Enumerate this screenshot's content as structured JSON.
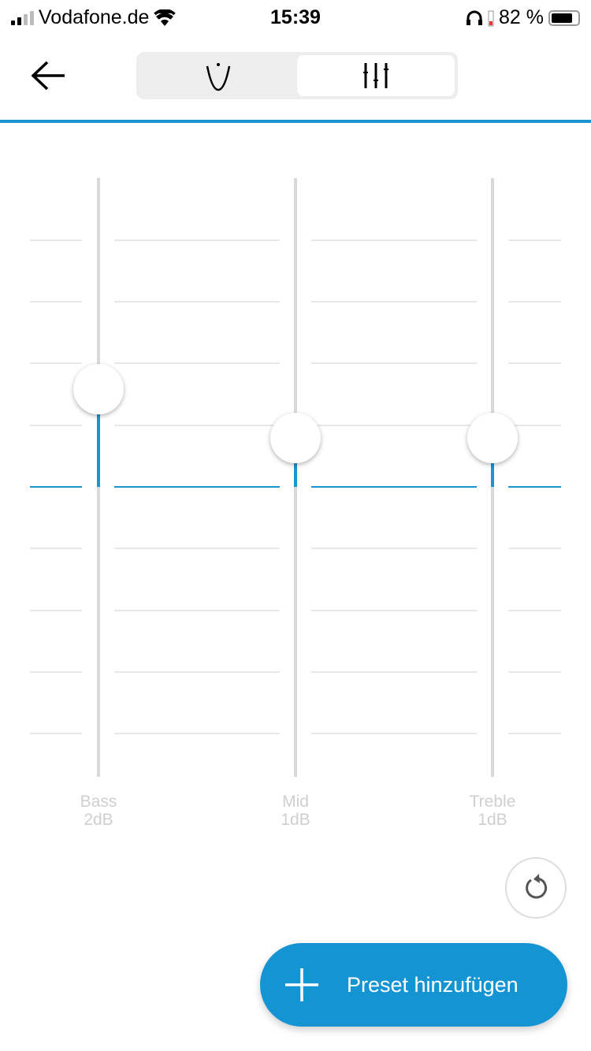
{
  "status_bar": {
    "carrier": "Vodafone.de",
    "time": "15:39",
    "battery": "82 %",
    "battery_level": 82
  },
  "header": {
    "back_icon": "arrow-left-icon",
    "segments": [
      {
        "icon": "curve-icon",
        "selected": false
      },
      {
        "icon": "sliders-icon",
        "selected": true
      }
    ]
  },
  "colors": {
    "accent": "#1b94d1",
    "button": "#1594d4"
  },
  "equalizer": {
    "bands": [
      {
        "name": "Bass",
        "value_label": "2dB",
        "value_db": 2
      },
      {
        "name": "Mid",
        "value_label": "1dB",
        "value_db": 1
      },
      {
        "name": "Treble",
        "value_label": "1dB",
        "value_db": 1
      }
    ]
  },
  "reset_icon": "reset-icon",
  "add_preset": {
    "label": "Preset hinzufügen",
    "icon": "plus-icon"
  }
}
